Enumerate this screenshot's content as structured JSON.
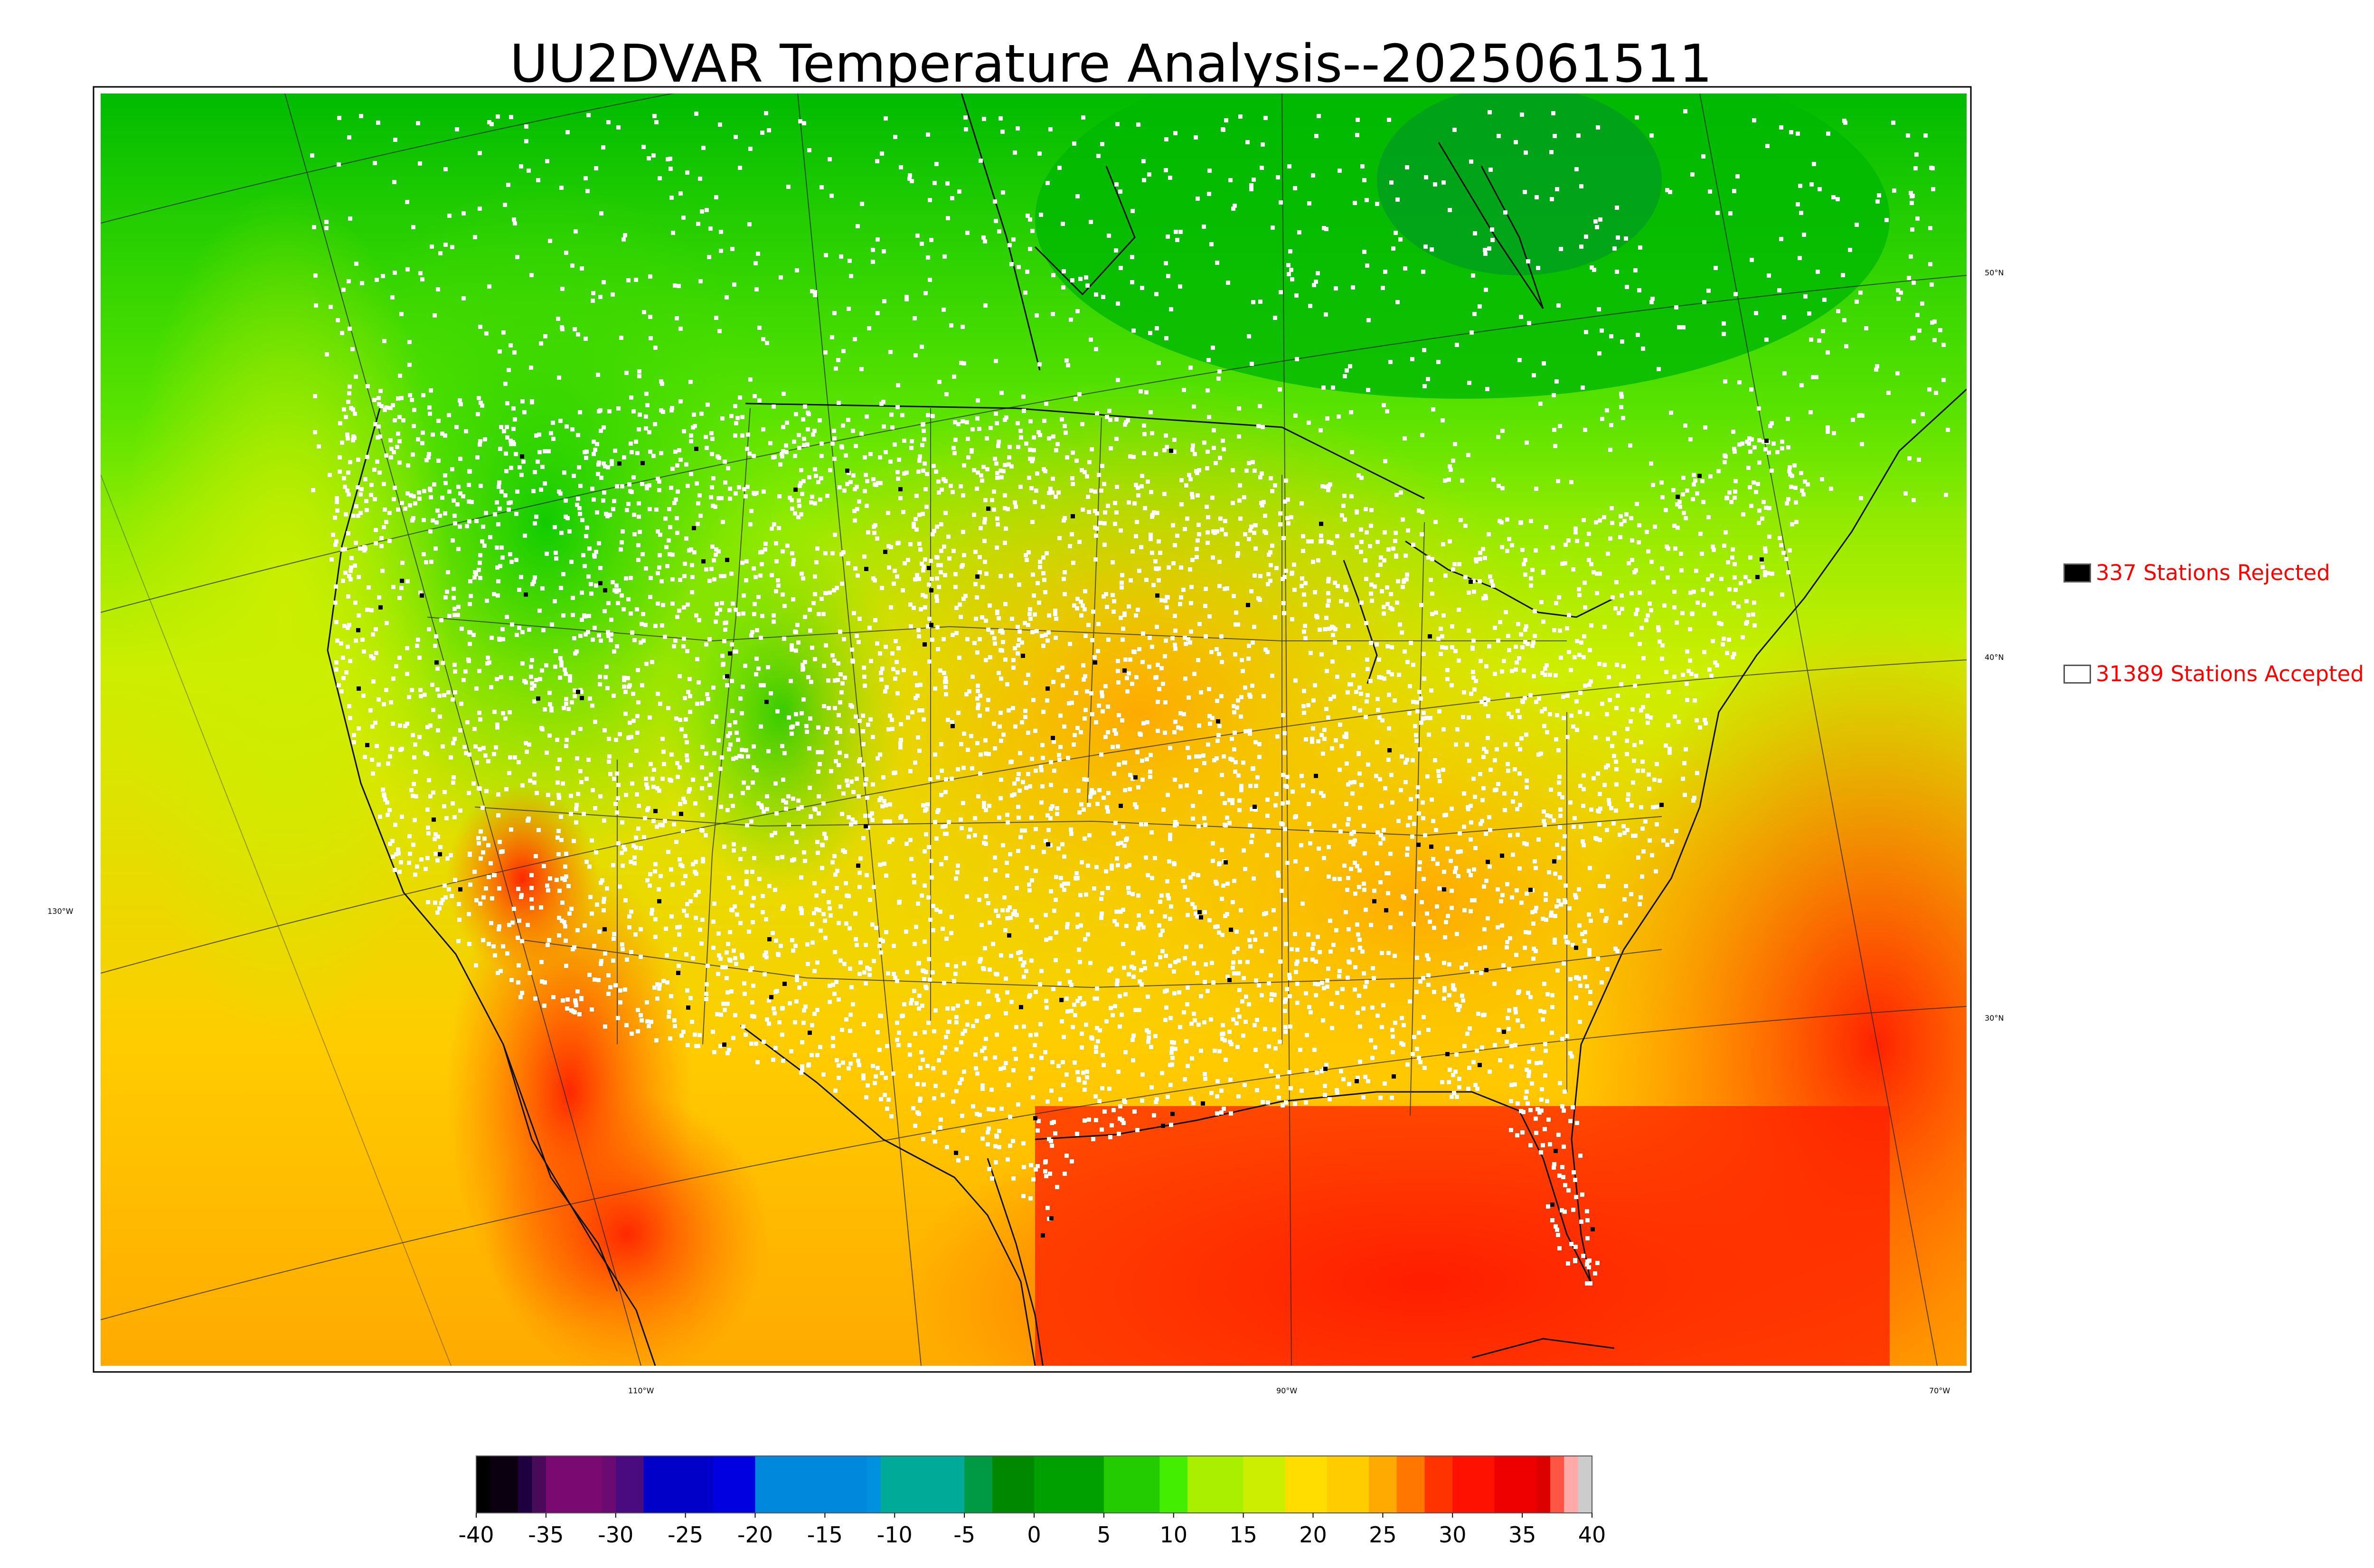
{
  "title": "UU2DVAR Temperature Analysis--2025061511",
  "map": {
    "lon_labels": [
      "130°W",
      "110°W",
      "90°W",
      "70°W"
    ],
    "lat_labels": [
      "50°N",
      "40°N",
      "30°N"
    ]
  },
  "legend": {
    "rejected": {
      "text": "337 Stations Rejected",
      "count": 337,
      "color": "#000000"
    },
    "accepted": {
      "text": "31389 Stations Accepted",
      "count": 31389,
      "color": "#ffffff"
    }
  },
  "colorbar": {
    "ticks": [
      "-40",
      "-35",
      "-30",
      "-25",
      "-20",
      "-15",
      "-10",
      "-5",
      "0",
      "5",
      "10",
      "15",
      "20",
      "25",
      "30",
      "35",
      "40"
    ],
    "min": -40,
    "max": 40
  }
}
